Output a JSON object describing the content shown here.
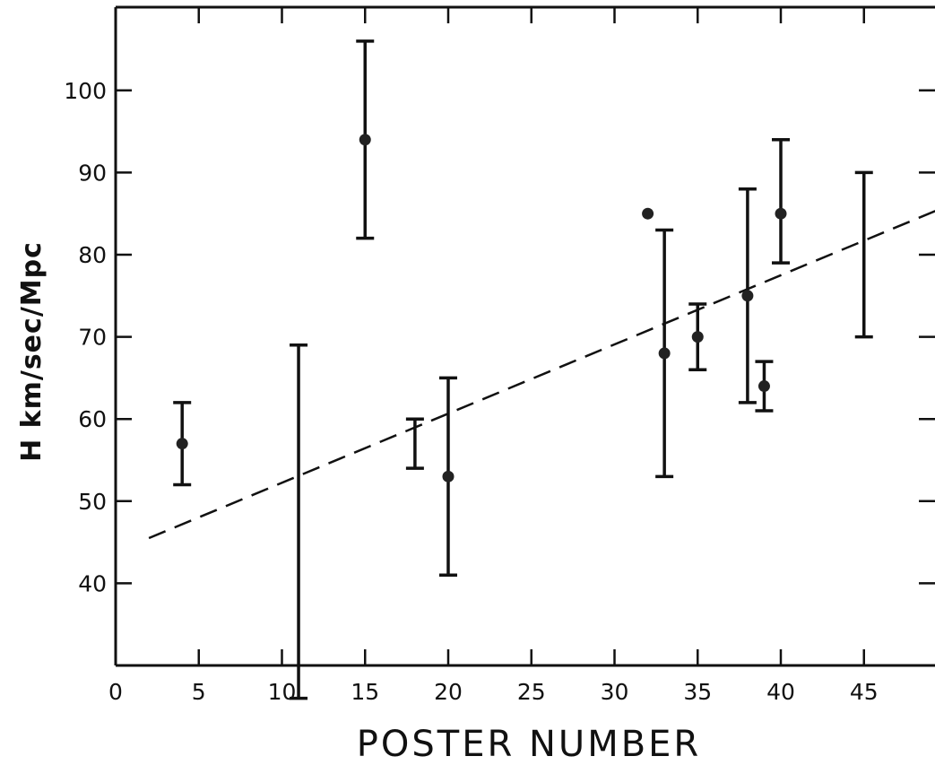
{
  "chart_data": {
    "type": "scatter",
    "xlabel": "POSTER NUMBER",
    "ylabel": "H km/sec/Mpc",
    "xlim": [
      0,
      49.5
    ],
    "ylim": [
      30,
      110
    ],
    "x_ticks": [
      0,
      5,
      10,
      15,
      20,
      25,
      30,
      35,
      40,
      45
    ],
    "y_ticks": [
      40,
      50,
      60,
      70,
      80,
      90,
      100
    ],
    "grid": false,
    "points": [
      {
        "x": 4,
        "y": 57,
        "ylow": 52,
        "yhigh": 62
      },
      {
        "x": 11,
        "y": null,
        "ylow": 26,
        "yhigh": 69
      },
      {
        "x": 15,
        "y": 94,
        "ylow": 82,
        "yhigh": 106
      },
      {
        "x": 18,
        "y": null,
        "ylow": 54,
        "yhigh": 60
      },
      {
        "x": 20,
        "y": 53,
        "ylow": 41,
        "yhigh": 65
      },
      {
        "x": 32,
        "y": 85,
        "ylow": null,
        "yhigh": null
      },
      {
        "x": 33,
        "y": 68,
        "ylow": 53,
        "yhigh": 83
      },
      {
        "x": 35,
        "y": 70,
        "ylow": 66,
        "yhigh": 74
      },
      {
        "x": 38,
        "y": 75,
        "ylow": 62,
        "yhigh": 88
      },
      {
        "x": 39,
        "y": 64,
        "ylow": 61,
        "yhigh": 67
      },
      {
        "x": 40,
        "y": 85,
        "ylow": 79,
        "yhigh": 94
      },
      {
        "x": 45,
        "y": null,
        "ylow": 70,
        "yhigh": 90
      }
    ],
    "fit_line": {
      "x": [
        2,
        49.5
      ],
      "y": [
        45.5,
        85.5
      ],
      "style": "dashed"
    }
  }
}
